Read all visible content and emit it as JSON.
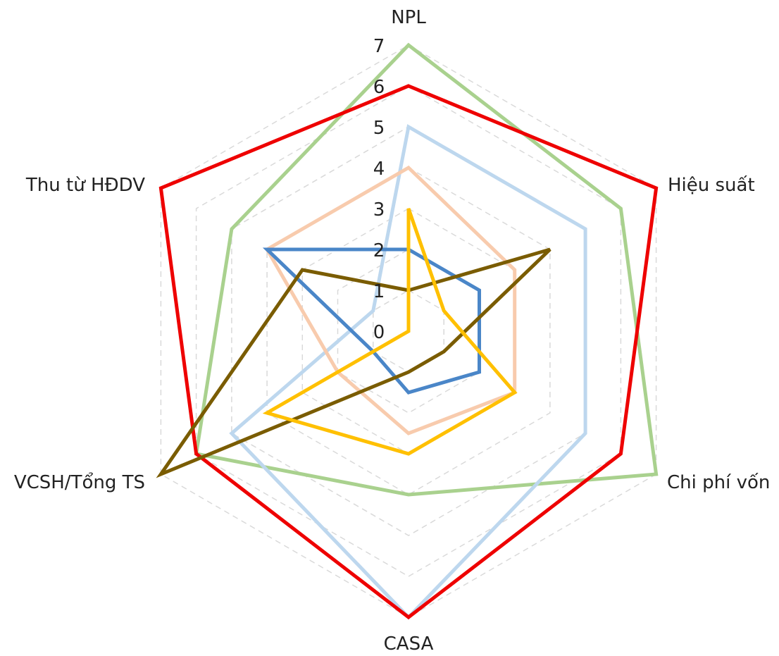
{
  "chart_data": {
    "type": "radar",
    "axes": [
      "NPL",
      "Hiệu suất",
      "Chi phí vốn",
      "CASA",
      "VCSH/Tổng TS",
      "Thu từ HĐDV"
    ],
    "rlim": [
      0,
      7
    ],
    "ticks": [
      "0",
      "1",
      "2",
      "3",
      "4",
      "5",
      "6",
      "7"
    ],
    "tick_values": [
      0,
      1,
      2,
      3,
      4,
      5,
      6,
      7
    ],
    "grid": true,
    "legend": false,
    "series": [
      {
        "color": "#a9d18e",
        "values": [
          7,
          6,
          7,
          4,
          6,
          5
        ]
      },
      {
        "color": "#bdd7ee",
        "values": [
          5,
          5,
          5,
          7,
          5,
          1
        ]
      },
      {
        "color": "#f8cbad",
        "values": [
          4,
          3,
          3,
          2.5,
          2,
          4
        ]
      },
      {
        "color": "#ee0000",
        "values": [
          6,
          7,
          6,
          7,
          6,
          7
        ]
      },
      {
        "color": "#4a86c8",
        "values": [
          2,
          2,
          2,
          1.5,
          1,
          4
        ]
      },
      {
        "color": "#7a5c00",
        "values": [
          1,
          4,
          1,
          1,
          7,
          3
        ]
      },
      {
        "color": "#ffc000",
        "values": [
          3,
          1,
          3,
          3,
          4,
          0
        ]
      }
    ]
  }
}
